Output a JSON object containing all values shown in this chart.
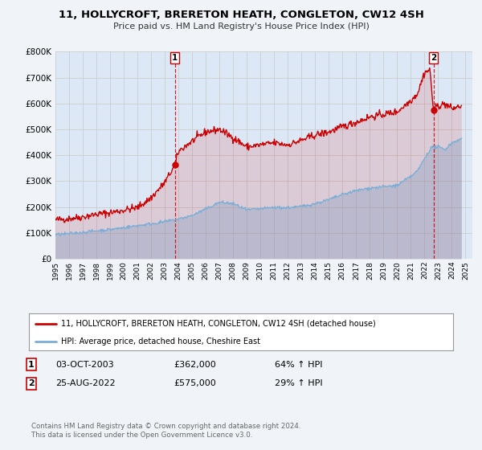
{
  "title": "11, HOLLYCROFT, BRERETON HEATH, CONGLETON, CW12 4SH",
  "subtitle": "Price paid vs. HM Land Registry's House Price Index (HPI)",
  "bg_color": "#f0f4f8",
  "plot_bg_color": "#dce8f5",
  "red_color": "#cc0000",
  "blue_color": "#7aaed6",
  "grid_color": "#cccccc",
  "ylim": [
    0,
    800000
  ],
  "xlim_start": 1995.0,
  "xlim_end": 2025.5,
  "sale1_x": 2003.75,
  "sale1_y": 362000,
  "sale2_x": 2022.65,
  "sale2_y": 575000,
  "legend_label_red": "11, HOLLYCROFT, BRERETON HEATH, CONGLETON, CW12 4SH (detached house)",
  "legend_label_blue": "HPI: Average price, detached house, Cheshire East",
  "annotation1_date": "03-OCT-2003",
  "annotation1_price": "£362,000",
  "annotation1_hpi": "64% ↑ HPI",
  "annotation2_date": "25-AUG-2022",
  "annotation2_price": "£575,000",
  "annotation2_hpi": "29% ↑ HPI",
  "footer": "Contains HM Land Registry data © Crown copyright and database right 2024.\nThis data is licensed under the Open Government Licence v3.0.",
  "yticks": [
    0,
    100000,
    200000,
    300000,
    400000,
    500000,
    600000,
    700000,
    800000
  ],
  "ytick_labels": [
    "£0",
    "£100K",
    "£200K",
    "£300K",
    "£400K",
    "£500K",
    "£600K",
    "£700K",
    "£800K"
  ]
}
